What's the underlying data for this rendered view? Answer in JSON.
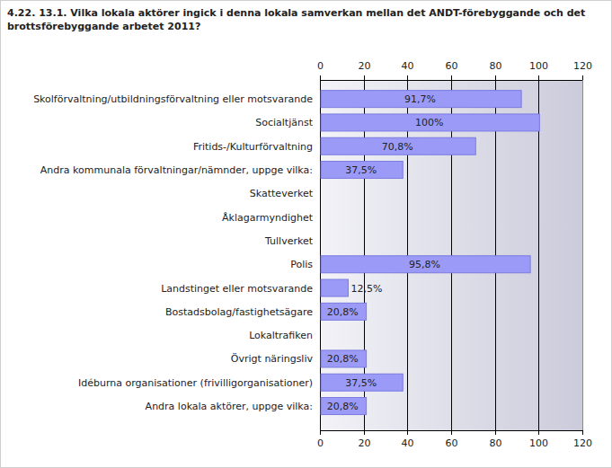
{
  "chart_data": {
    "type": "bar",
    "orientation": "horizontal",
    "title": "4.22. 13.1. Vilka lokala aktörer ingick i denna lokala samverkan mellan det ANDT-förebyggande och det brottsförebyggande arbetet 2011?",
    "categories": [
      "Skolförvaltning/utbildningsförvaltning eller motsvarande",
      "Socialtjänst",
      "Fritids-/Kulturförvaltning",
      "Andra kommunala förvaltningar/nämnder, uppge vilka:",
      "Skatteverket",
      "Åklagarmyndighet",
      "Tullverket",
      "Polis",
      "Landstinget eller motsvarande",
      "Bostadsbolag/fastighetsägare",
      "Lokaltrafiken",
      "Övrigt näringsliv",
      "Idéburna organisationer (frivilligorganisationer)",
      "Andra lokala aktörer, uppge vilka:"
    ],
    "values": [
      91.7,
      100,
      70.8,
      37.5,
      0,
      0,
      0,
      95.8,
      12.5,
      20.8,
      0,
      20.8,
      37.5,
      20.8
    ],
    "value_labels": [
      "91,7%",
      "100%",
      "70,8%",
      "37,5%",
      null,
      null,
      null,
      "95,8%",
      "12,5%",
      "20,8%",
      null,
      "20,8%",
      "37,5%",
      "20,8%"
    ],
    "color": "#9b9bf7",
    "xlim": [
      0,
      120
    ],
    "xticks": [
      0,
      20,
      40,
      60,
      80,
      100,
      120
    ],
    "grid": true,
    "data_labels": true
  }
}
